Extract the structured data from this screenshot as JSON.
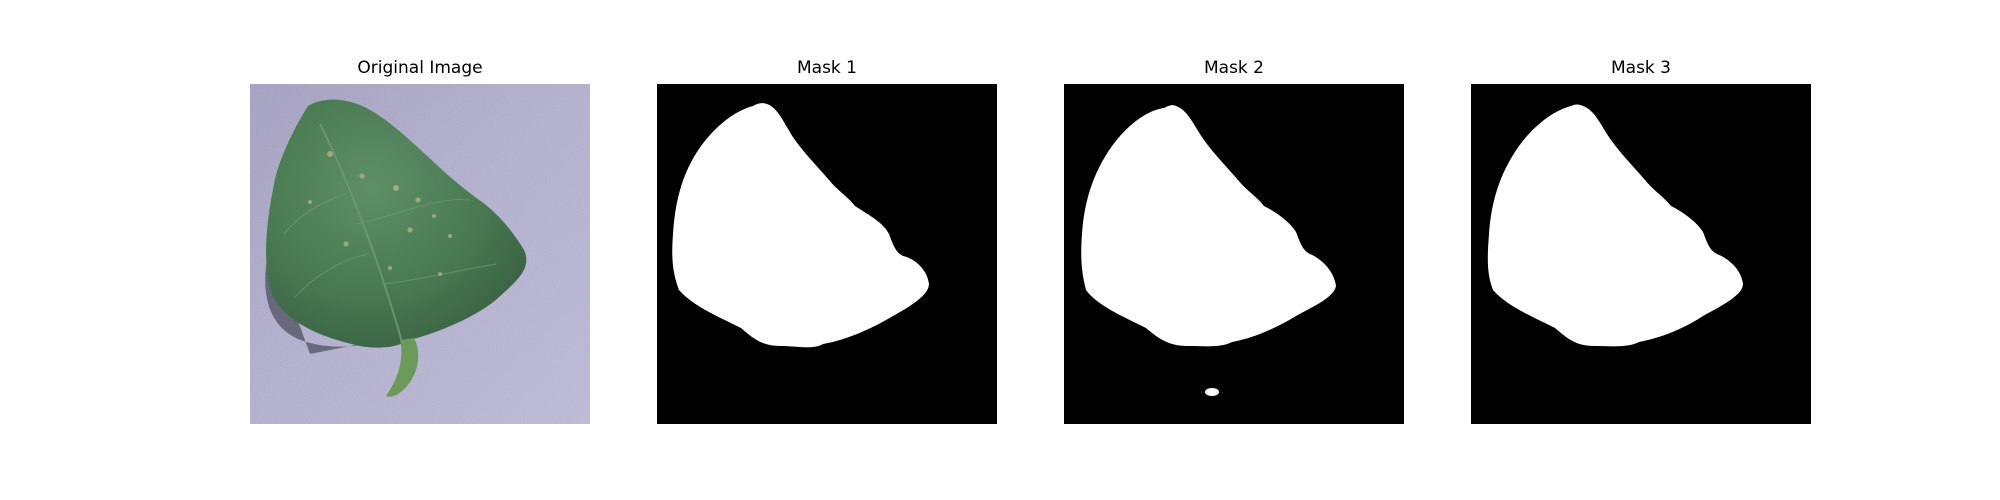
{
  "figure": {
    "panels": [
      {
        "title": "Original Image",
        "kind": "photo"
      },
      {
        "title": "Mask 1",
        "kind": "mask"
      },
      {
        "title": "Mask 2",
        "kind": "mask"
      },
      {
        "title": "Mask 3",
        "kind": "mask"
      }
    ]
  },
  "colors": {
    "background": "#ffffff",
    "mask_fg": "#ffffff",
    "mask_bg": "#000000",
    "photo_surface": "#a9a6c6",
    "leaf_green": "#4f7e57",
    "leaf_dark": "#3a6344"
  }
}
